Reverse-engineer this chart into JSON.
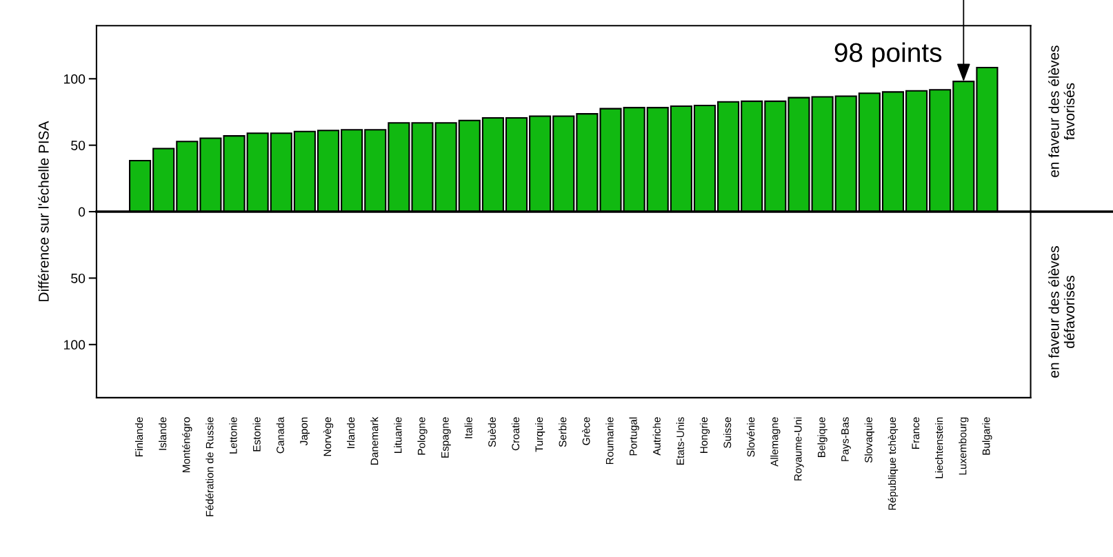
{
  "chart_data": {
    "type": "bar",
    "ylabel": "Différence sur l'échelle PISA",
    "categories": [
      "Finlande",
      "Islande",
      "Monténégro",
      "Fédération de Russie",
      "Lettonie",
      "Estonie",
      "Canada",
      "Japon",
      "Norvège",
      "Irlande",
      "Danemark",
      "Lituanie",
      "Pologne",
      "Espagne",
      "Italie",
      "Suède",
      "Croatie",
      "Turquie",
      "Serbie",
      "Grèce",
      "Roumanie",
      "Portugal",
      "Autriche",
      "Etats-Unis",
      "Hongrie",
      "Suisse",
      "Slovénie",
      "Allemagne",
      "Royaume-Uni",
      "Belgique",
      "Pays-Bas",
      "Slovaquie",
      "République tchèque",
      "France",
      "Liechtenstein",
      "Luxembourg",
      "Bulgarie"
    ],
    "values": [
      38.4,
      47.5,
      52.8,
      55.3,
      57.0,
      59.0,
      59.0,
      60.3,
      61.1,
      61.6,
      61.6,
      66.8,
      66.8,
      66.8,
      68.6,
      70.6,
      70.6,
      71.9,
      71.9,
      73.6,
      77.5,
      78.3,
      78.3,
      79.4,
      79.9,
      82.6,
      83.1,
      83.1,
      85.8,
      86.4,
      86.9,
      89.1,
      90.1,
      90.9,
      91.7,
      98,
      108.4
    ],
    "color": "#11b911",
    "ylim": [
      -140,
      140
    ],
    "yticks": [
      100,
      50,
      0,
      {
        "value": -50,
        "label": "50"
      },
      {
        "value": -100,
        "label": "100"
      }
    ],
    "ref_lines": [
      {
        "axis": "y",
        "value": 0,
        "color": "#000000"
      }
    ],
    "annotations": [
      {
        "text": "98 points",
        "x": "Luxembourg",
        "y": 98
      },
      "en faveur des élèves\nfavorisés",
      "en faveur des élèves\ndéfavorisés"
    ],
    "grid": false,
    "legend": false
  }
}
